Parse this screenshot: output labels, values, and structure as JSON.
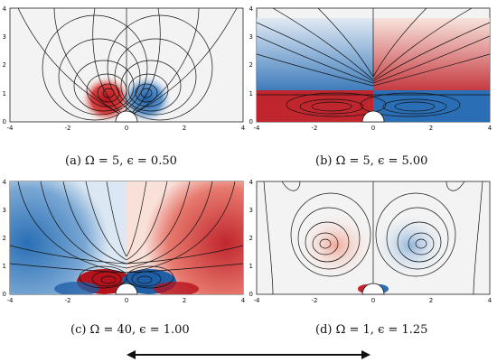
{
  "colors": {
    "red": "#c0262d",
    "blue": "#2a6fb5",
    "line": "#111111",
    "grid_bg": "#f2f2f2"
  },
  "panels": [
    {
      "id": "a",
      "caption": "(a) Ω = 5,  ϵ = 0.50",
      "x_ticks": [
        "-4",
        "-2",
        "0",
        "2",
        "4"
      ],
      "y_ticks": [
        "0",
        "1",
        "2",
        "3",
        "4"
      ]
    },
    {
      "id": "b",
      "caption": "(b) Ω = 5,  ϵ = 5.00",
      "x_ticks": [
        "-4",
        "-2",
        "0",
        "2",
        "4"
      ],
      "y_ticks": [
        "0",
        "1",
        "2",
        "3",
        "4"
      ]
    },
    {
      "id": "c",
      "caption": "(c) Ω = 40,  ϵ = 1.00",
      "x_ticks": [
        "-4",
        "-2",
        "0",
        "2",
        "4"
      ],
      "y_ticks": [
        "0",
        "1",
        "2",
        "3",
        "4"
      ]
    },
    {
      "id": "d",
      "caption": "(d) Ω = 1,  ϵ = 1.25",
      "x_ticks": [
        "-4",
        "-2",
        "0",
        "2",
        "4"
      ],
      "y_ticks": [
        "0",
        "1",
        "2",
        "3",
        "4"
      ]
    }
  ]
}
